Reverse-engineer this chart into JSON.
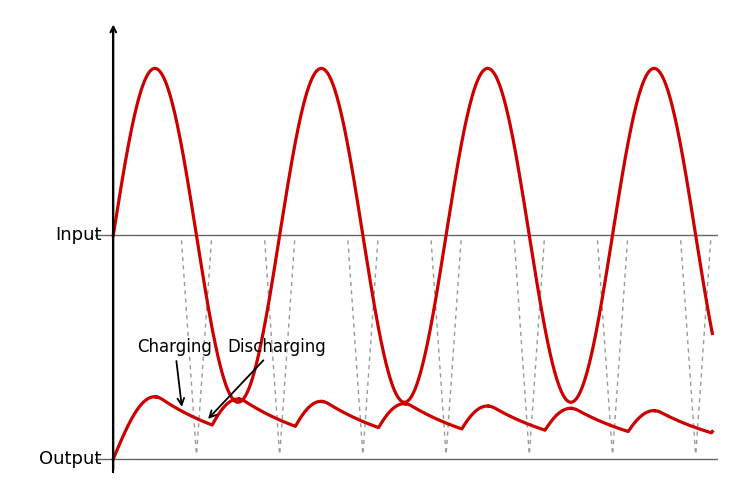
{
  "background_color": "#ffffff",
  "input_label": "Input",
  "output_label": "Output",
  "charging_label": "Charging",
  "discharging_label": "Discharging",
  "line_color": "#cc0000",
  "dashed_color": "#999999",
  "axis_color": "#666666",
  "fig_width": 7.33,
  "fig_height": 4.99,
  "dpi": 100,
  "label_fontsize": 13,
  "annotation_fontsize": 12,
  "num_cycles": 3.6,
  "input_amp": 1.0,
  "input_zero": 0.62,
  "output_zero": -0.72,
  "output_dc": 0.38,
  "output_ripple": 0.07,
  "output_droop": 0.1,
  "rc_decay": 3.5
}
